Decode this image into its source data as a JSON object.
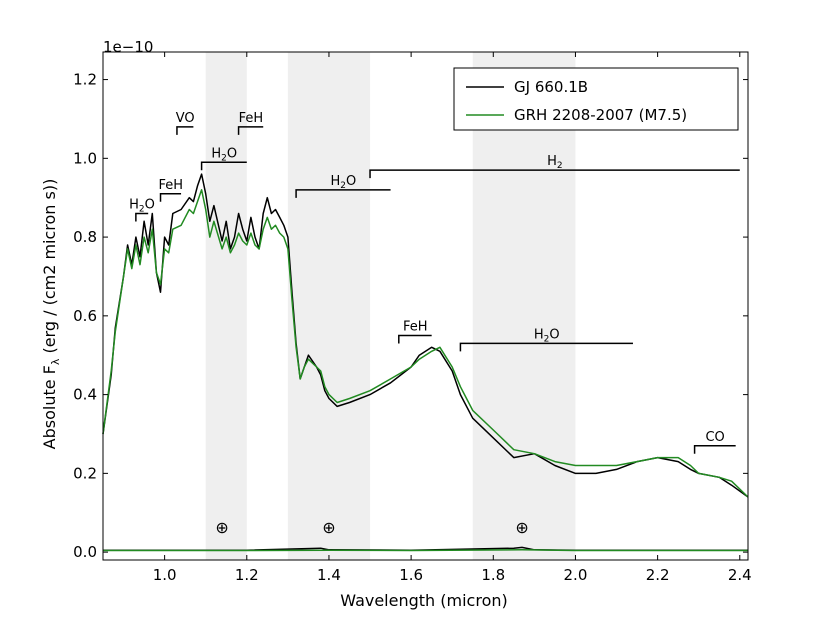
{
  "chart_data": {
    "type": "line",
    "xlabel": "Wavelength (micron)",
    "ylabel": "Absolute F",
    "ylabel_sub": "λ",
    "ylabel_units": " (erg / (cm2 micron s))",
    "offset_text": "1e−10",
    "xlim": [
      0.85,
      2.42
    ],
    "ylim": [
      -0.02,
      1.27
    ],
    "xticks": [
      1.0,
      1.2,
      1.4,
      1.6,
      1.8,
      2.0,
      2.2,
      2.4
    ],
    "xtick_labels": [
      "1.0",
      "1.2",
      "1.4",
      "1.6",
      "1.8",
      "2.0",
      "2.2",
      "2.4"
    ],
    "yticks": [
      0.0,
      0.2,
      0.4,
      0.6,
      0.8,
      1.0,
      1.2
    ],
    "ytick_labels": [
      "0.0",
      "0.2",
      "0.4",
      "0.6",
      "0.8",
      "1.0",
      "1.2"
    ],
    "grid": false,
    "legend_position": "top-right",
    "telluric_bands": [
      [
        1.1,
        1.2
      ],
      [
        1.3,
        1.5
      ],
      [
        1.75,
        2.0
      ]
    ],
    "telluric_symbol": "⊕",
    "telluric_symbol_x": [
      1.14,
      1.4,
      1.87
    ],
    "series": [
      {
        "name": "GJ 660.1B",
        "color": "#000000",
        "x": [
          0.85,
          0.87,
          0.88,
          0.9,
          0.91,
          0.92,
          0.93,
          0.94,
          0.95,
          0.96,
          0.97,
          0.98,
          0.99,
          1.0,
          1.01,
          1.02,
          1.04,
          1.06,
          1.07,
          1.08,
          1.09,
          1.1,
          1.11,
          1.12,
          1.14,
          1.15,
          1.16,
          1.17,
          1.18,
          1.19,
          1.2,
          1.21,
          1.22,
          1.23,
          1.24,
          1.25,
          1.26,
          1.27,
          1.28,
          1.29,
          1.3,
          1.31,
          1.32,
          1.33,
          1.34,
          1.35,
          1.37,
          1.38,
          1.39,
          1.4,
          1.42,
          1.45,
          1.5,
          1.55,
          1.6,
          1.62,
          1.65,
          1.67,
          1.7,
          1.72,
          1.75,
          1.8,
          1.85,
          1.9,
          1.95,
          2.0,
          2.05,
          2.1,
          2.15,
          2.2,
          2.25,
          2.28,
          2.3,
          2.35,
          2.38,
          2.42
        ],
        "y": [
          0.3,
          0.45,
          0.57,
          0.7,
          0.78,
          0.73,
          0.8,
          0.75,
          0.84,
          0.78,
          0.86,
          0.71,
          0.66,
          0.8,
          0.78,
          0.86,
          0.87,
          0.9,
          0.89,
          0.93,
          0.96,
          0.91,
          0.84,
          0.88,
          0.79,
          0.84,
          0.77,
          0.8,
          0.86,
          0.82,
          0.79,
          0.85,
          0.8,
          0.77,
          0.86,
          0.9,
          0.86,
          0.87,
          0.85,
          0.83,
          0.8,
          0.66,
          0.53,
          0.44,
          0.47,
          0.5,
          0.47,
          0.45,
          0.41,
          0.39,
          0.37,
          0.38,
          0.4,
          0.43,
          0.47,
          0.5,
          0.52,
          0.51,
          0.46,
          0.4,
          0.34,
          0.29,
          0.24,
          0.25,
          0.22,
          0.2,
          0.2,
          0.21,
          0.23,
          0.24,
          0.23,
          0.21,
          0.2,
          0.19,
          0.17,
          0.14
        ]
      },
      {
        "name": "GRH 2208-2007 (M7.5)",
        "color": "#228b22",
        "x": [
          0.85,
          0.87,
          0.88,
          0.9,
          0.91,
          0.92,
          0.93,
          0.94,
          0.95,
          0.96,
          0.97,
          0.98,
          0.99,
          1.0,
          1.01,
          1.02,
          1.04,
          1.06,
          1.07,
          1.08,
          1.09,
          1.1,
          1.11,
          1.12,
          1.14,
          1.15,
          1.16,
          1.17,
          1.18,
          1.19,
          1.2,
          1.21,
          1.22,
          1.23,
          1.24,
          1.25,
          1.26,
          1.27,
          1.28,
          1.29,
          1.3,
          1.31,
          1.32,
          1.33,
          1.34,
          1.35,
          1.37,
          1.38,
          1.39,
          1.4,
          1.42,
          1.45,
          1.5,
          1.55,
          1.6,
          1.62,
          1.65,
          1.67,
          1.7,
          1.72,
          1.75,
          1.8,
          1.85,
          1.9,
          1.95,
          2.0,
          2.05,
          2.1,
          2.15,
          2.2,
          2.25,
          2.28,
          2.3,
          2.35,
          2.38,
          2.42
        ],
        "y": [
          0.3,
          0.46,
          0.56,
          0.7,
          0.77,
          0.72,
          0.78,
          0.73,
          0.8,
          0.76,
          0.82,
          0.71,
          0.68,
          0.77,
          0.76,
          0.82,
          0.83,
          0.87,
          0.86,
          0.89,
          0.92,
          0.87,
          0.8,
          0.84,
          0.77,
          0.8,
          0.76,
          0.78,
          0.81,
          0.79,
          0.78,
          0.81,
          0.78,
          0.77,
          0.82,
          0.85,
          0.82,
          0.83,
          0.81,
          0.8,
          0.77,
          0.64,
          0.52,
          0.44,
          0.47,
          0.49,
          0.47,
          0.46,
          0.42,
          0.4,
          0.38,
          0.39,
          0.41,
          0.44,
          0.47,
          0.49,
          0.51,
          0.52,
          0.47,
          0.42,
          0.36,
          0.31,
          0.26,
          0.25,
          0.23,
          0.22,
          0.22,
          0.22,
          0.23,
          0.24,
          0.24,
          0.22,
          0.2,
          0.19,
          0.18,
          0.14
        ]
      },
      {
        "name": "",
        "color": "#000000",
        "x": [
          0.85,
          1.0,
          1.2,
          1.38,
          1.4,
          1.6,
          1.85,
          1.87,
          1.9,
          2.0,
          2.2,
          2.42
        ],
        "y": [
          0.005,
          0.005,
          0.005,
          0.01,
          0.006,
          0.005,
          0.01,
          0.012,
          0.006,
          0.005,
          0.005,
          0.005
        ]
      },
      {
        "name": "",
        "color": "#228b22",
        "x": [
          0.85,
          1.0,
          1.2,
          1.4,
          1.6,
          1.87,
          2.0,
          2.2,
          2.42
        ],
        "y": [
          0.004,
          0.004,
          0.004,
          0.005,
          0.004,
          0.006,
          0.004,
          0.004,
          0.004
        ]
      }
    ],
    "annotations": [
      {
        "text": "H",
        "sub": "2",
        "tail": "O",
        "x1": 0.93,
        "x2": 0.96,
        "y": 0.86
      },
      {
        "text": "FeH",
        "sub": "",
        "tail": "",
        "x1": 0.99,
        "x2": 1.04,
        "y": 0.91
      },
      {
        "text": "VO",
        "sub": "",
        "tail": "",
        "x1": 1.03,
        "x2": 1.07,
        "y": 1.08
      },
      {
        "text": "FeH",
        "sub": "",
        "tail": "",
        "x1": 1.18,
        "x2": 1.24,
        "y": 1.08
      },
      {
        "text": "H",
        "sub": "2",
        "tail": "O",
        "x1": 1.09,
        "x2": 1.2,
        "y": 0.99
      },
      {
        "text": "H",
        "sub": "2",
        "tail": "",
        "x1": 1.5,
        "x2": 2.4,
        "y": 0.97
      },
      {
        "text": "H",
        "sub": "2",
        "tail": "O",
        "x1": 1.32,
        "x2": 1.55,
        "y": 0.92
      },
      {
        "text": "FeH",
        "sub": "",
        "tail": "",
        "x1": 1.57,
        "x2": 1.65,
        "y": 0.55
      },
      {
        "text": "H",
        "sub": "2",
        "tail": "O",
        "x1": 1.72,
        "x2": 2.14,
        "y": 0.53
      },
      {
        "text": "CO",
        "sub": "",
        "tail": "",
        "x1": 2.29,
        "x2": 2.39,
        "y": 0.27
      }
    ]
  }
}
